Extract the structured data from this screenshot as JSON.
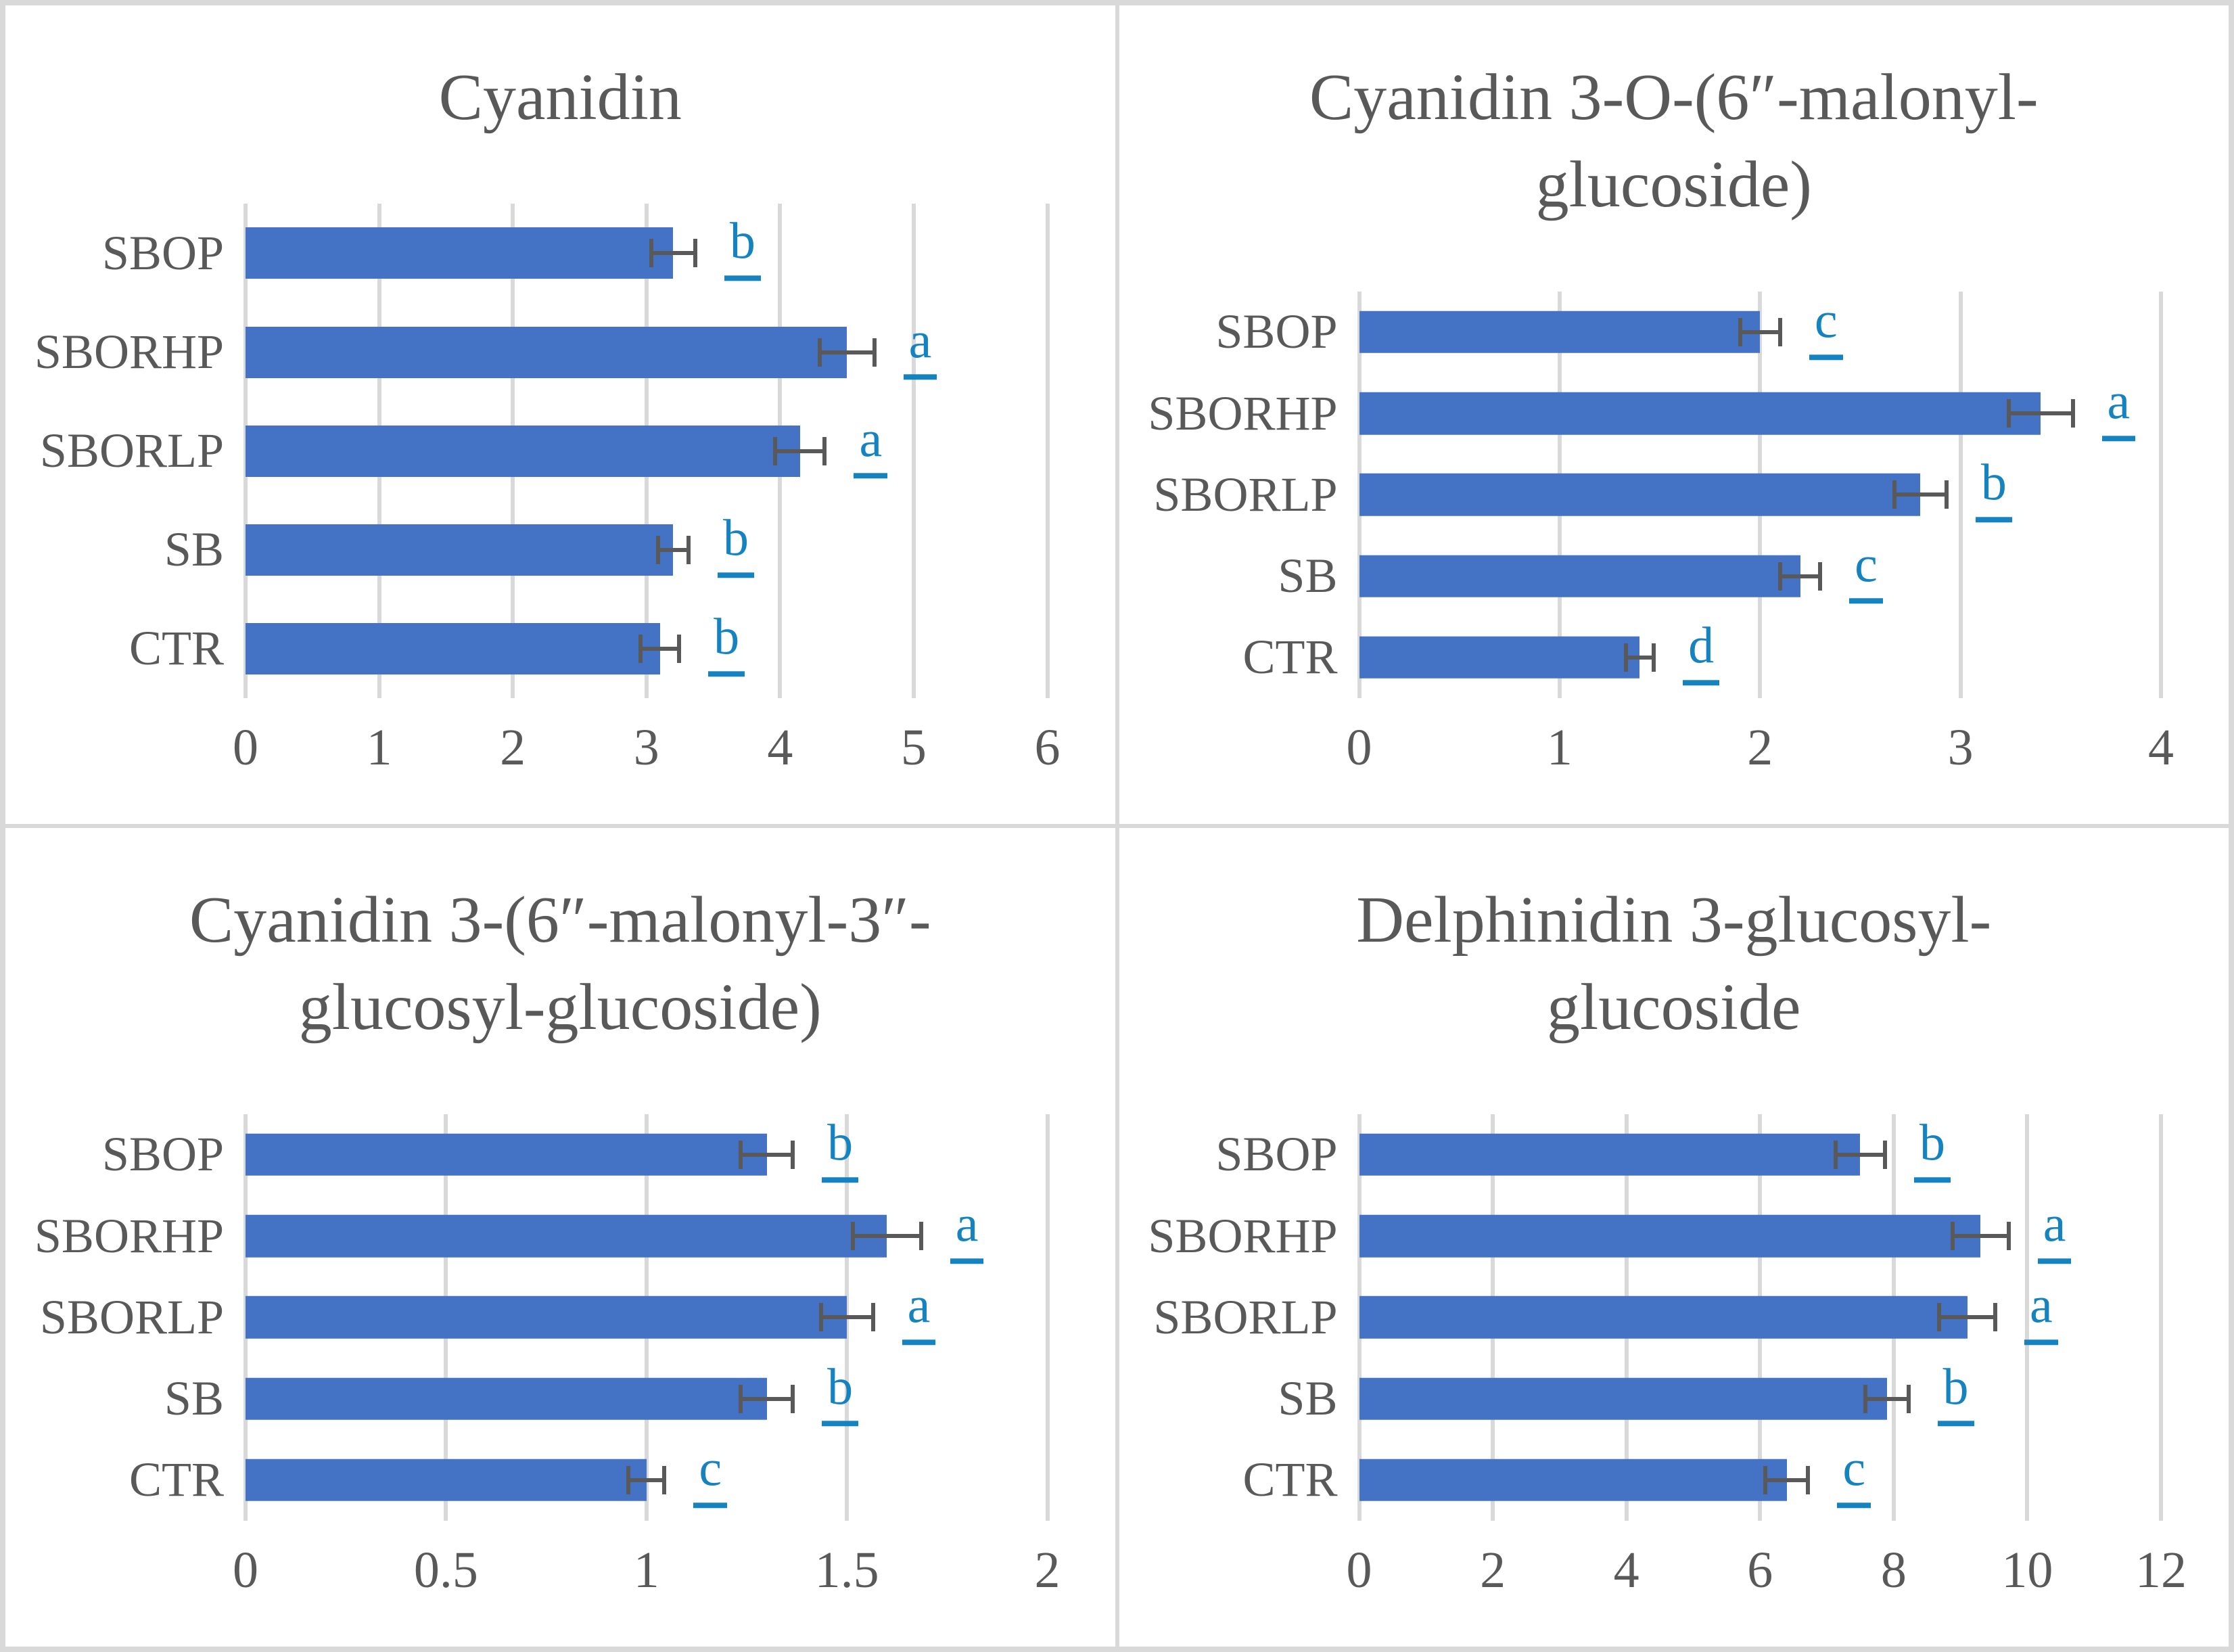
{
  "colors": {
    "bar": "#4472C4",
    "grid": "#D9D9D9",
    "text": "#595959",
    "error_bar": "#595959",
    "sig_letter": "#1583C0",
    "panel_border": "#D9D9D9"
  },
  "chart_data": [
    {
      "type": "bar",
      "orientation": "horizontal",
      "title": "Cyanidin",
      "categories": [
        "SBOP",
        "SBORHP",
        "SBORLP",
        "SB",
        "CTR"
      ],
      "values": [
        3.2,
        4.5,
        4.15,
        3.2,
        3.1
      ],
      "errors": [
        0.18,
        0.22,
        0.2,
        0.13,
        0.16
      ],
      "letters": [
        "b",
        "a",
        "a",
        "b",
        "b"
      ],
      "xlim": [
        0,
        6
      ],
      "xticks": [
        "0",
        "1",
        "2",
        "3",
        "4",
        "5",
        "6"
      ],
      "grid": true,
      "legend": false
    },
    {
      "type": "bar",
      "orientation": "horizontal",
      "title": "Cyanidin 3-O-(6″-malonyl-glucoside)",
      "categories": [
        "SBOP",
        "SBORHP",
        "SBORLP",
        "SB",
        "CTR"
      ],
      "values": [
        2.0,
        3.4,
        2.8,
        2.2,
        1.4
      ],
      "errors": [
        0.11,
        0.17,
        0.14,
        0.11,
        0.08
      ],
      "letters": [
        "c",
        "a",
        "b",
        "c",
        "d"
      ],
      "xlim": [
        0,
        4
      ],
      "xticks": [
        "0",
        "1",
        "2",
        "3",
        "4"
      ],
      "grid": true,
      "legend": false
    },
    {
      "type": "bar",
      "orientation": "horizontal",
      "title": "Cyanidin 3-(6″-malonyl-3″-glucosyl-glucoside)",
      "categories": [
        "SBOP",
        "SBORHP",
        "SBORLP",
        "SB",
        "CTR"
      ],
      "values": [
        1.3,
        1.6,
        1.5,
        1.3,
        1.0
      ],
      "errors": [
        0.07,
        0.09,
        0.07,
        0.07,
        0.05
      ],
      "letters": [
        "b",
        "a",
        "a",
        "b",
        "c"
      ],
      "xlim": [
        0,
        2
      ],
      "xticks": [
        "0",
        "0.5",
        "1",
        "1.5",
        "2"
      ],
      "grid": true,
      "legend": false
    },
    {
      "type": "bar",
      "orientation": "horizontal",
      "title": "Delphinidin 3-glucosyl-glucoside",
      "categories": [
        "SBOP",
        "SBORHP",
        "SBORLP",
        "SB",
        "CTR"
      ],
      "values": [
        7.5,
        9.3,
        9.1,
        7.9,
        6.4
      ],
      "errors": [
        0.4,
        0.45,
        0.45,
        0.35,
        0.35
      ],
      "letters": [
        "b",
        "a",
        "a",
        "b",
        "c"
      ],
      "xlim": [
        0,
        12
      ],
      "xticks": [
        "0",
        "2",
        "4",
        "6",
        "8",
        "10",
        "12"
      ],
      "grid": true,
      "legend": false
    }
  ]
}
